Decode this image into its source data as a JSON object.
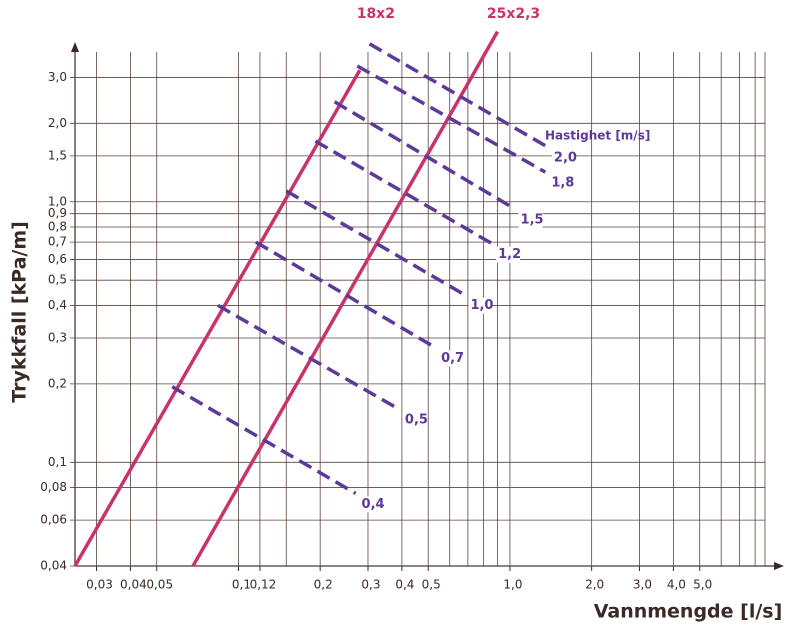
{
  "chart_data": {
    "type": "line",
    "log_x": true,
    "log_y": true,
    "grid": true,
    "x_label": "Vannmengde [l/s]",
    "y_label": "Trykkfall [kPa/m]",
    "legend_title": "Hastighet [m/s]",
    "xlim": [
      0.025,
      8.7
    ],
    "ylim": [
      0.04,
      3.5
    ],
    "xticks": [
      {
        "value": 0.03,
        "label": "0,03"
      },
      {
        "value": 0.04,
        "label": "0,04"
      },
      {
        "value": 0.05,
        "label": "0,05"
      },
      {
        "value": 0.1,
        "label": "0,1"
      },
      {
        "value": 0.12,
        "label": "0,12"
      },
      {
        "value": 0.2,
        "label": "0,2"
      },
      {
        "value": 0.3,
        "label": "0,3"
      },
      {
        "value": 0.4,
        "label": "0,4"
      },
      {
        "value": 0.5,
        "label": "0,5"
      },
      {
        "value": 1,
        "label": "1,0"
      },
      {
        "value": 2,
        "label": "2,0"
      },
      {
        "value": 3,
        "label": "3,0"
      },
      {
        "value": 4,
        "label": "4,0"
      },
      {
        "value": 5,
        "label": "5,0"
      }
    ],
    "xminor": [
      0.15,
      0.6,
      0.7,
      0.8,
      0.9,
      6,
      7,
      8
    ],
    "yticks": [
      {
        "value": 0.04,
        "label": "0,04"
      },
      {
        "value": 0.06,
        "label": "0,06"
      },
      {
        "value": 0.08,
        "label": "0,08"
      },
      {
        "value": 0.1,
        "label": "0,1"
      },
      {
        "value": 0.2,
        "label": "0,2"
      },
      {
        "value": 0.3,
        "label": "0,3"
      },
      {
        "value": 0.4,
        "label": "0,4"
      },
      {
        "value": 0.5,
        "label": "0,5"
      },
      {
        "value": 0.6,
        "label": "0,6"
      },
      {
        "value": 0.7,
        "label": "0,7"
      },
      {
        "value": 0.8,
        "label": "0,8"
      },
      {
        "value": 0.9,
        "label": "0,9"
      },
      {
        "value": 1,
        "label": "1,0"
      },
      {
        "value": 1.5,
        "label": "1,5"
      },
      {
        "value": 2,
        "label": "2,0"
      },
      {
        "value": 3,
        "label": "3,0"
      }
    ],
    "series": [
      {
        "name": "18x2",
        "color": "#c8336b",
        "style": "solid",
        "x": [
          0.025,
          0.28
        ],
        "values": [
          0.04,
          3.2
        ]
      },
      {
        "name": "25x2,3",
        "color": "#c8336b",
        "style": "solid",
        "x": [
          0.068,
          0.9
        ],
        "values": [
          0.04,
          4.5
        ]
      },
      {
        "name": "2,0",
        "color": "#5b3a98",
        "style": "dashed",
        "x": [
          0.304,
          1.38
        ],
        "values": [
          4.04,
          1.62
        ]
      },
      {
        "name": "1,8",
        "color": "#5b3a98",
        "style": "dashed",
        "x": [
          0.274,
          1.35
        ],
        "values": [
          3.32,
          1.3
        ]
      },
      {
        "name": "1,5",
        "color": "#5b3a98",
        "style": "dashed",
        "x": [
          0.226,
          1.04
        ],
        "values": [
          2.42,
          0.94
        ]
      },
      {
        "name": "1,2",
        "color": "#5b3a98",
        "style": "dashed",
        "x": [
          0.192,
          0.86
        ],
        "values": [
          1.71,
          0.69
        ]
      },
      {
        "name": "1,0",
        "color": "#5b3a98",
        "style": "dashed",
        "x": [
          0.15,
          0.68
        ],
        "values": [
          1.1,
          0.44
        ]
      },
      {
        "name": "0,7",
        "color": "#5b3a98",
        "style": "dashed",
        "x": [
          0.116,
          0.53
        ],
        "values": [
          0.7,
          0.276
        ]
      },
      {
        "name": "0,5",
        "color": "#5b3a98",
        "style": "dashed",
        "x": [
          0.084,
          0.39
        ],
        "values": [
          0.4,
          0.16
        ]
      },
      {
        "name": "0,4",
        "color": "#5b3a98",
        "style": "dashed",
        "x": [
          0.057,
          0.27
        ],
        "values": [
          0.195,
          0.076
        ]
      }
    ]
  }
}
